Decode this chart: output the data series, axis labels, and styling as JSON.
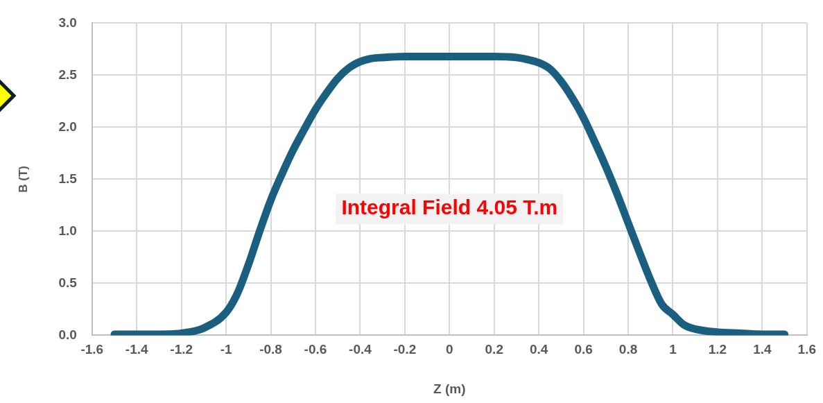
{
  "chart_data": {
    "type": "line",
    "xlabel": "Z (m)",
    "ylabel": "B (T)",
    "annotations": [
      "Integral Field 4.05 T.m"
    ],
    "x": [
      -1.5,
      -1.4,
      -1.3,
      -1.2,
      -1.1,
      -1.0,
      -0.95,
      -0.9,
      -0.85,
      -0.8,
      -0.75,
      -0.7,
      -0.65,
      -0.6,
      -0.55,
      -0.5,
      -0.45,
      -0.4,
      -0.35,
      -0.3,
      -0.2,
      0,
      0.2,
      0.3,
      0.35,
      0.4,
      0.45,
      0.5,
      0.55,
      0.6,
      0.65,
      0.7,
      0.75,
      0.8,
      0.85,
      0.9,
      0.95,
      1.0,
      1.05,
      1.1,
      1.2,
      1.3,
      1.4,
      1.5
    ],
    "series": [
      {
        "color": "#1a5f80",
        "values": [
          0.01,
          0.01,
          0.01,
          0.02,
          0.07,
          0.22,
          0.4,
          0.68,
          1.0,
          1.3,
          1.55,
          1.78,
          1.98,
          2.17,
          2.33,
          2.47,
          2.57,
          2.63,
          2.66,
          2.67,
          2.68,
          2.68,
          2.68,
          2.67,
          2.65,
          2.62,
          2.56,
          2.44,
          2.28,
          2.09,
          1.86,
          1.62,
          1.36,
          1.08,
          0.8,
          0.53,
          0.3,
          0.2,
          0.1,
          0.06,
          0.03,
          0.02,
          0.01,
          0.01
        ]
      }
    ],
    "xlim": [
      -1.6,
      1.6
    ],
    "xticks": [
      -1.6,
      -1.4,
      -1.2,
      -1,
      -0.8,
      -0.6,
      -0.4,
      -0.2,
      0,
      0.2,
      0.4,
      0.6,
      0.8,
      1,
      1.2,
      1.4,
      1.6
    ],
    "ylim": [
      0,
      3
    ],
    "yticks": [
      {
        "value": 0,
        "label": "0.0"
      },
      {
        "value": 0.5,
        "label": "0.5"
      },
      {
        "value": 1,
        "label": "1.0"
      },
      {
        "value": 1.5,
        "label": "1.5"
      },
      {
        "value": 2,
        "label": "2.0"
      },
      {
        "value": 2.5,
        "label": "2.5"
      },
      {
        "value": 3,
        "label": "3.0"
      }
    ],
    "grid": true,
    "legend": false,
    "marker": "none",
    "line_style": "solid"
  }
}
